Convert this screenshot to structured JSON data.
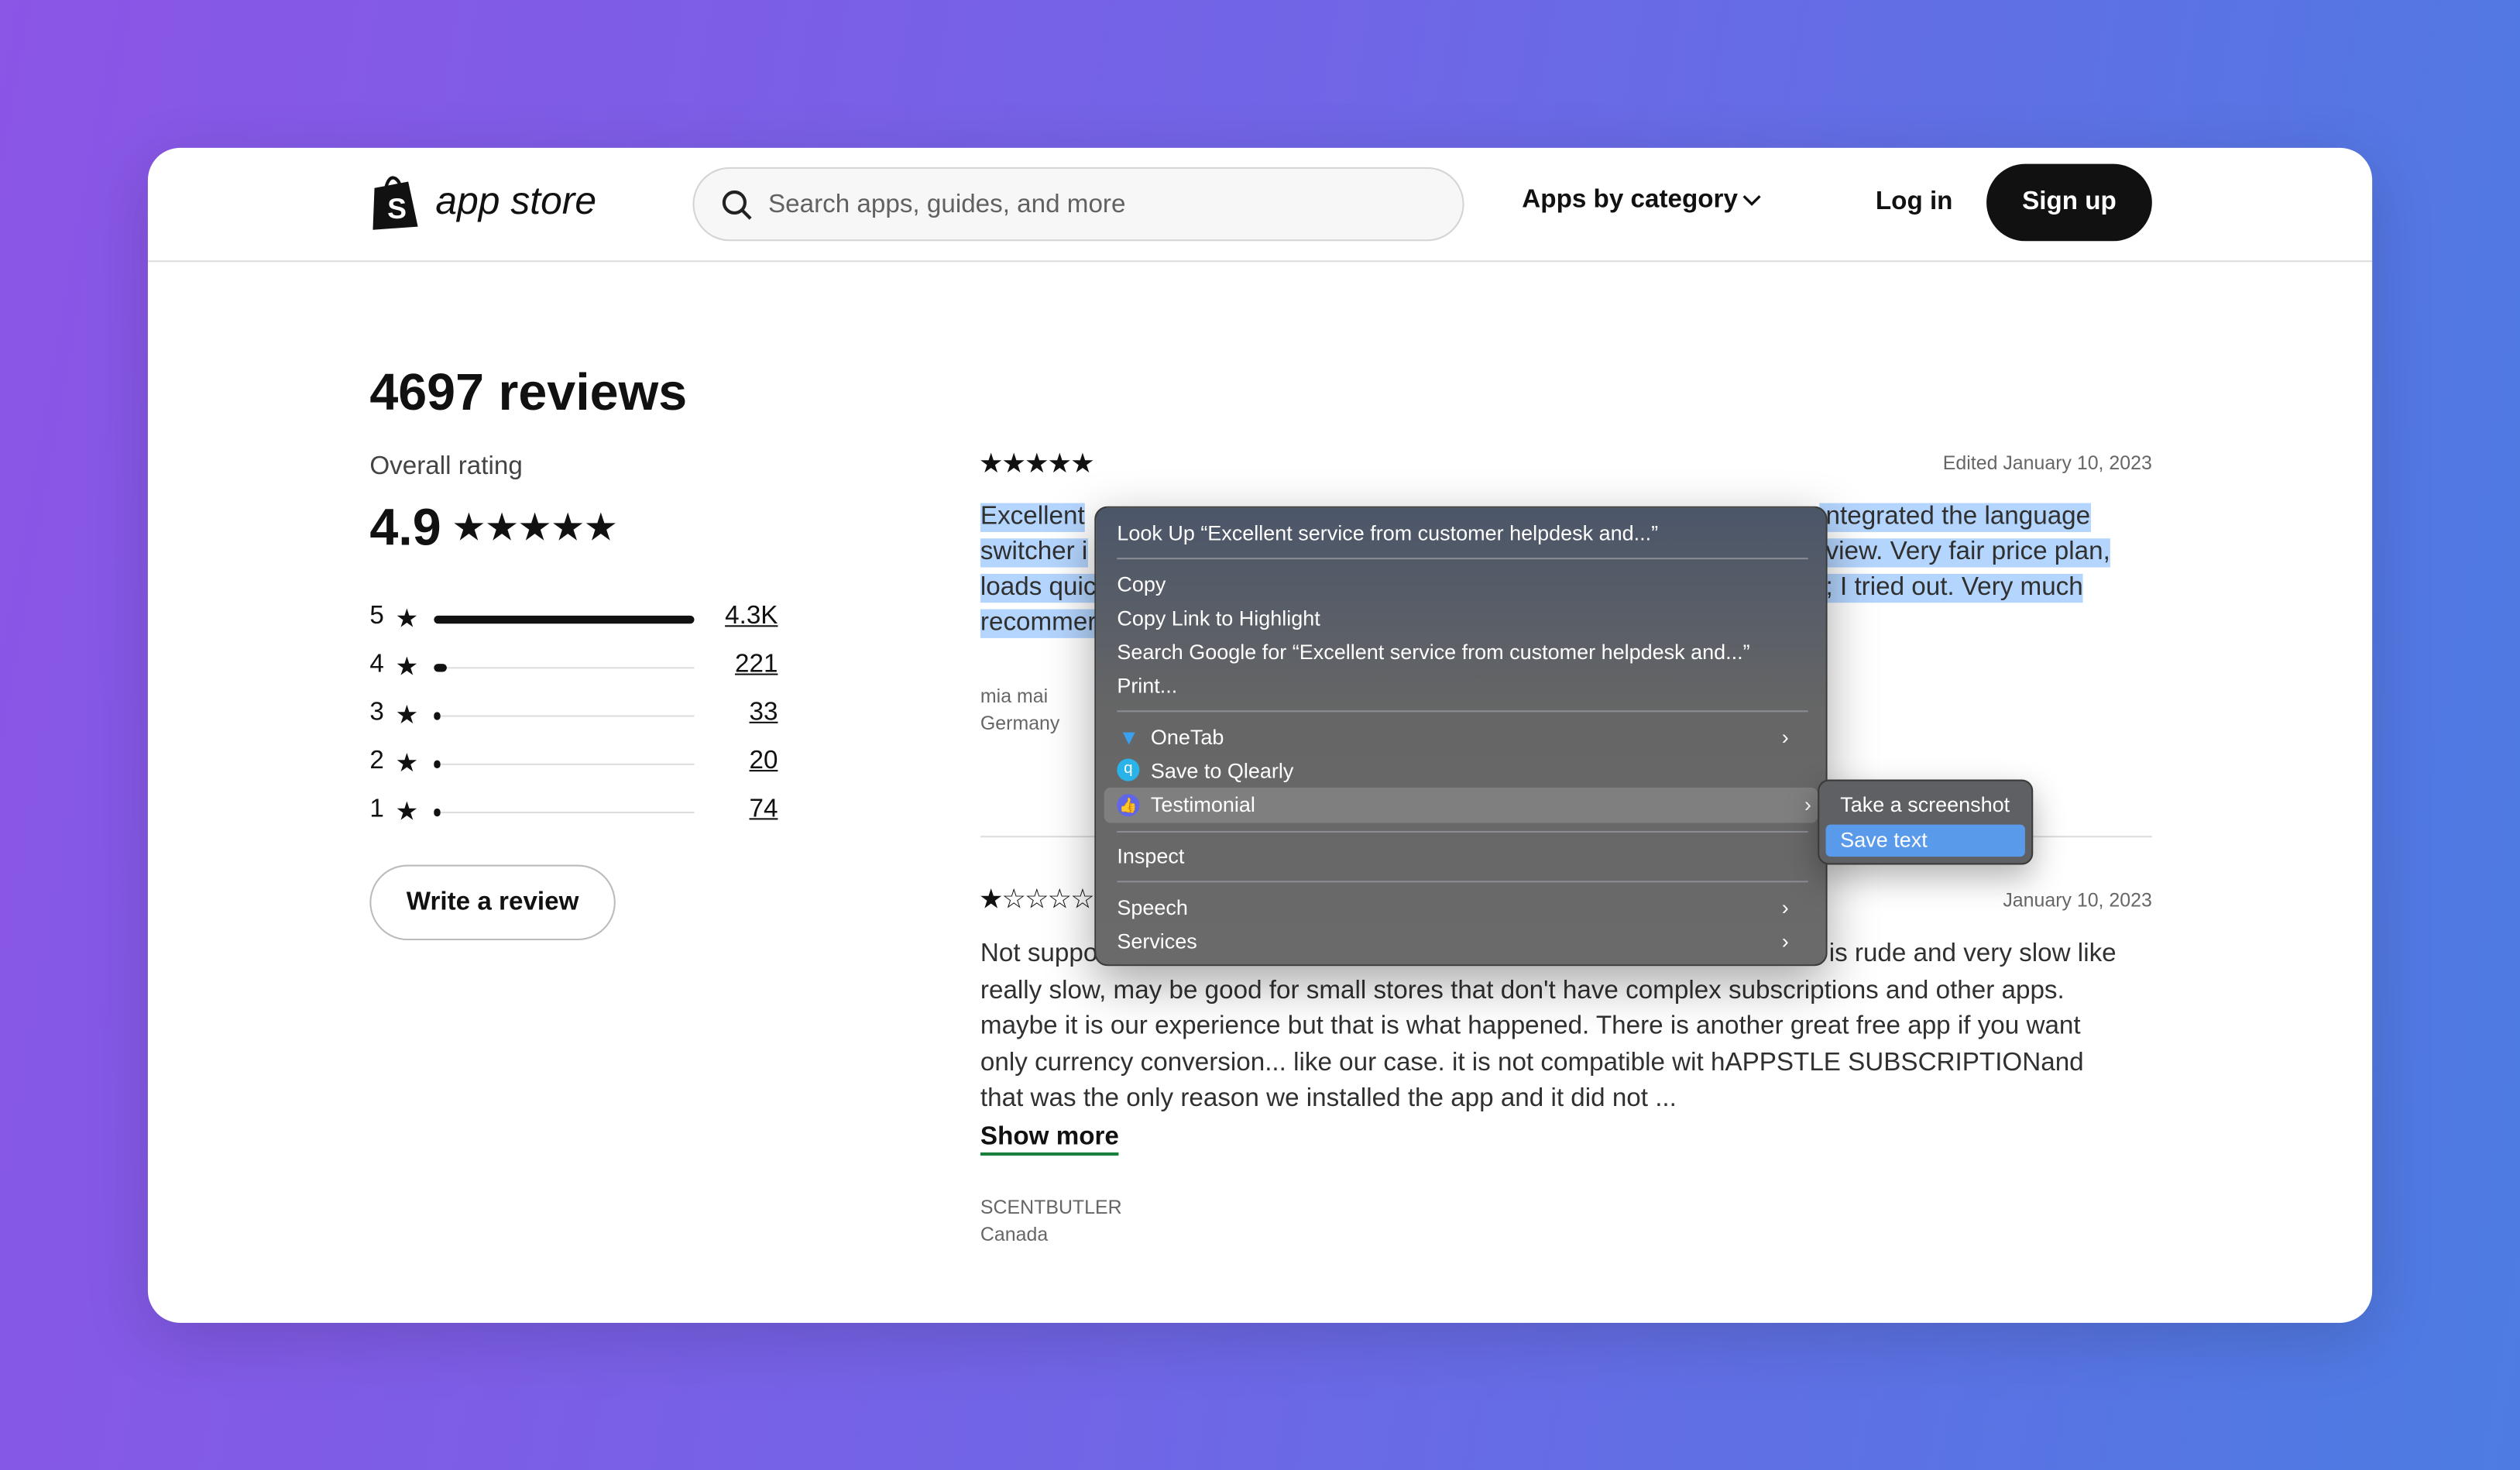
{
  "header": {
    "logo_text": "app store",
    "search_placeholder": "Search apps, guides, and more",
    "category": "Apps by category",
    "login": "Log in",
    "signup": "Sign up"
  },
  "summary": {
    "title": "4697 reviews",
    "overall_label": "Overall rating",
    "rating": "4.9",
    "write_review": "Write a review",
    "bars": [
      {
        "star": "5",
        "count": "4.3K",
        "fraction": 1.0
      },
      {
        "star": "4",
        "count": "221",
        "fraction": 0.05
      },
      {
        "star": "3",
        "count": "33",
        "fraction": 0.01
      },
      {
        "star": "2",
        "count": "20",
        "fraction": 0.01
      },
      {
        "star": "1",
        "count": "74",
        "fraction": 0.02
      }
    ]
  },
  "reviews": [
    {
      "stars": 5,
      "date": "Edited January 10, 2023",
      "lines_left": [
        "Excellent",
        "switcher i",
        "loads quic",
        "recommer"
      ],
      "lines_right": [
        "ntegrated the language",
        "view. Very fair price plan,",
        "; I tried out. Very much",
        ""
      ],
      "author": "mia mai",
      "country": "Germany"
    },
    {
      "stars": 1,
      "date": "January 10, 2023",
      "first_left": "Not suppo",
      "first_right": "is rude and very slow like",
      "lines": [
        "really slow, may be good for small stores that don't have complex subscriptions and other apps.",
        "maybe it is our experience but that is what happened. There is another great free app if you want",
        "only currency conversion... like our case. it is not compatible wit hAPPSTLE SUBSCRIPTIONand",
        "that was the only reason we installed the app and it did not ..."
      ],
      "show_more": "Show more",
      "author": "SCENTBUTLER",
      "country": "Canada"
    }
  ],
  "context_menu": {
    "items": [
      "Look Up “Excellent service from customer helpdesk and...”",
      "Copy",
      "Copy Link to Highlight",
      "Search Google for “Excellent service from customer helpdesk and...”",
      "Print...",
      "OneTab",
      "Save to Qlearly",
      "Testimonial",
      "Inspect",
      "Speech",
      "Services"
    ],
    "submenu": [
      "Take a screenshot",
      "Save text"
    ]
  },
  "colors": {
    "selection": "#b4d5fe",
    "menu_highlight": "#5a9aeb",
    "show_more_underline": "#1a7f3c"
  }
}
